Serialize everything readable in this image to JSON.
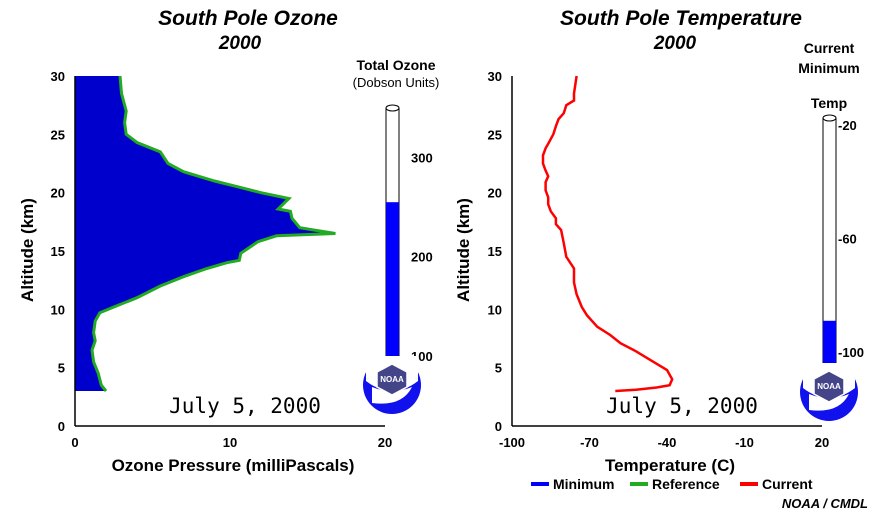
{
  "colors": {
    "ozone_fill": "#0000cc",
    "reference_line": "#22aa22",
    "current_line": "#ff0000",
    "minimum_line": "#0000ff",
    "gauge_fill": "#0000ff",
    "noaa_blue": "#1111ee"
  },
  "chart_data": [
    {
      "type": "area",
      "title": "South Pole Ozone",
      "subtitle": "2000",
      "xlabel": "Ozone Pressure (milliPascals)",
      "ylabel": "Altitude (km)",
      "xlim": [
        0,
        20
      ],
      "ylim": [
        0,
        30
      ],
      "xticks": [
        0,
        10,
        20
      ],
      "yticks": [
        0,
        5,
        10,
        15,
        20,
        25,
        30
      ],
      "date_label": "July 5, 2000",
      "series": [
        {
          "name": "Current",
          "style": "filled area",
          "x": [
            2.0,
            1.7,
            1.5,
            1.2,
            1.1,
            1.3,
            1.2,
            1.3,
            1.6,
            2.5,
            4.0,
            5.5,
            7.0,
            8.5,
            9.8,
            10.6,
            10.7,
            11.8,
            13.0,
            16.8,
            14.5,
            14.0,
            13.9,
            13.1,
            13.8,
            12.0,
            10.5,
            9.0,
            7.0,
            6.0,
            5.5,
            4.0,
            3.3,
            3.2,
            3.3,
            3.0,
            2.9
          ],
          "y": [
            3.0,
            3.5,
            4.5,
            5.5,
            6.5,
            7.3,
            8.0,
            9.0,
            9.7,
            10.2,
            11.0,
            12.0,
            12.8,
            13.5,
            14.0,
            14.2,
            14.8,
            15.8,
            16.3,
            16.5,
            17.0,
            17.8,
            18.4,
            18.6,
            19.5,
            20.0,
            20.5,
            21.0,
            21.8,
            22.5,
            23.5,
            24.3,
            25.0,
            26.0,
            27.0,
            28.5,
            30.0
          ]
        }
      ],
      "gauge": {
        "title": "Total Ozone",
        "subtitle": "(Dobson Units)",
        "range": [
          0,
          350
        ],
        "ticks": [
          100,
          200,
          300
        ],
        "value": 255
      }
    },
    {
      "type": "line",
      "title": "South Pole Temperature",
      "subtitle": "2000",
      "xlabel": "Temperature (C)",
      "ylabel": "Altitude (km)",
      "xlim": [
        -100,
        20
      ],
      "ylim": [
        0,
        30
      ],
      "xticks": [
        -100,
        -70,
        -40,
        -10,
        20
      ],
      "yticks": [
        0,
        5,
        10,
        15,
        20,
        25,
        30
      ],
      "date_label": "July 5, 2000",
      "series": [
        {
          "name": "Current",
          "x": [
            -60,
            -52,
            -44,
            -39,
            -38,
            -40,
            -46,
            -52,
            -58,
            -62,
            -67,
            -71,
            -73,
            -75,
            -76,
            -76,
            -79,
            -80,
            -81,
            -83,
            -83,
            -85,
            -86,
            -86,
            -87,
            -87,
            -86,
            -87,
            -88,
            -88,
            -87,
            -86,
            -84,
            -83,
            -82,
            -80,
            -79,
            -76,
            -76,
            -75
          ],
          "y": [
            3.0,
            3.1,
            3.3,
            3.5,
            4.0,
            4.8,
            5.6,
            6.4,
            7.1,
            7.8,
            8.5,
            9.5,
            10.2,
            11.3,
            12.3,
            13.5,
            14.5,
            15.7,
            16.8,
            17.3,
            17.8,
            18.4,
            19.0,
            19.6,
            20.2,
            20.9,
            21.4,
            21.9,
            22.5,
            23.2,
            23.8,
            24.2,
            25.0,
            25.7,
            26.3,
            26.8,
            27.5,
            27.9,
            28.5,
            30.0
          ]
        }
      ],
      "gauge": {
        "title_lines": [
          "Current",
          "Minimum",
          "Temp"
        ],
        "range": [
          -110,
          -12
        ],
        "ticks": [
          -20,
          -60,
          -100
        ],
        "value": -89
      }
    }
  ],
  "legend": [
    {
      "label": "Minimum",
      "color": "#0000ff"
    },
    {
      "label": "Reference",
      "color": "#22aa22"
    },
    {
      "label": "Current",
      "color": "#ff0000"
    }
  ],
  "logo_text": "NOAA",
  "credit": "NOAA / CMDL"
}
